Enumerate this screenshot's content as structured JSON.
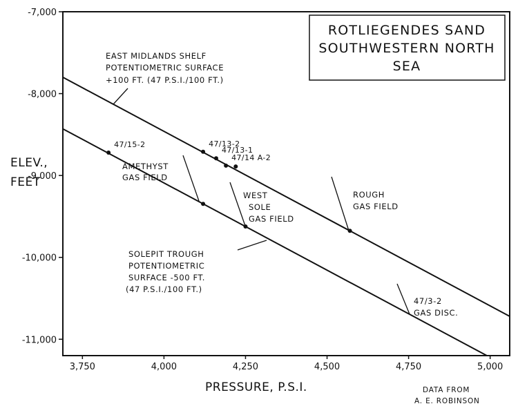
{
  "chart_data": {
    "type": "line",
    "title": [
      "ROTLIEGENDES SAND",
      "SOUTHWESTERN NORTH",
      "SEA"
    ],
    "xlabel": "PRESSURE, P.S.I.",
    "ylabel": [
      "ELEV.,",
      "FEET"
    ],
    "xlim": [
      3690,
      5060
    ],
    "ylim": [
      -11200,
      -7000
    ],
    "x_ticks": [
      3750,
      4000,
      4250,
      4500,
      4750,
      5000
    ],
    "x_tick_labels": [
      "3,750",
      "4,000",
      "4,250",
      "4,500",
      "4,750",
      "5,000"
    ],
    "y_ticks": [
      -7000,
      -8000,
      -9000,
      -10000,
      -11000
    ],
    "y_tick_labels": [
      "-7,000",
      "-8,000",
      "-9,000",
      "-10,000",
      "-11,000"
    ],
    "series": [
      {
        "x": [
          3690,
          5060
        ],
        "y": [
          -7800,
          -10720
        ]
      },
      {
        "x": [
          3690,
          4990
        ],
        "y": [
          -8430,
          -11200
        ]
      }
    ],
    "labeled_points": [
      {
        "label": "47/15-2",
        "x": 3830,
        "y": -8720
      },
      {
        "label": "47/13-2",
        "x": 4120,
        "y": -8710
      },
      {
        "label": "47/13-1",
        "x": 4160,
        "y": -8790
      },
      {
        "label": "47/14 A-2",
        "x": 4190,
        "y": -8880
      }
    ],
    "unlabeled_points": [
      {
        "x": 4220,
        "y": -8890
      }
    ],
    "annotations": [
      {
        "lines": [
          "EAST MIDLANDS SHELF",
          "POTENTIOMETRIC SURFACE",
          "+100 FT. (47 P.S.I./100 FT.)"
        ]
      },
      {
        "lines": [
          "AMETHYST",
          "GAS FIELD"
        ]
      },
      {
        "lines": [
          "WEST",
          "SOLE",
          "GAS FIELD"
        ]
      },
      {
        "lines": [
          "ROUGH",
          "GAS FIELD"
        ]
      },
      {
        "lines": [
          "SOLEPIT TROUGH",
          "POTENTIOMETRIC",
          "SURFACE -500 FT.",
          "(47 P.S.I./100 FT.)"
        ]
      },
      {
        "lines": [
          "47/3-2",
          "GAS DISC."
        ]
      }
    ],
    "grid": false
  },
  "credit": [
    "DATA FROM",
    "A. E. ROBINSON"
  ]
}
